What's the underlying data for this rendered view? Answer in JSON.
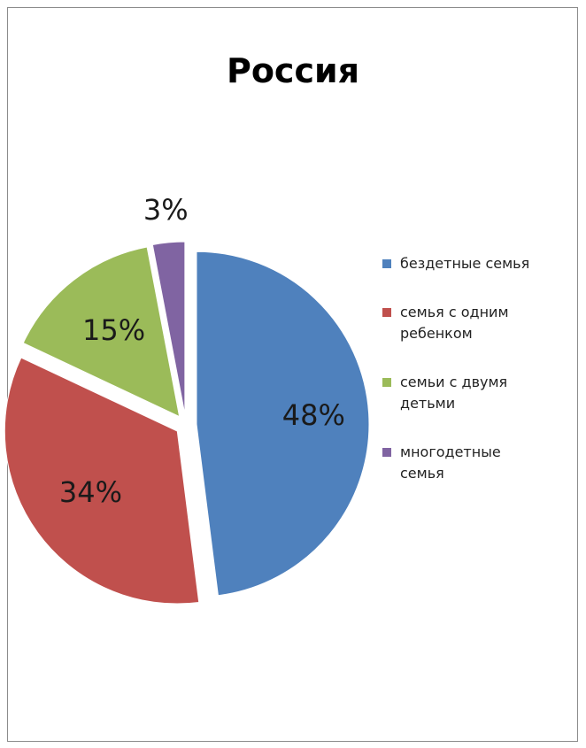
{
  "chart_data": {
    "type": "pie",
    "title": "Россия",
    "categories": [
      "бездетные семья",
      "семья с одним ребенком",
      "семьи с двумя детьми",
      "многодетные семья"
    ],
    "values": [
      48,
      34,
      15,
      3
    ],
    "data_labels": [
      "48%",
      "34%",
      "15%",
      "3%"
    ],
    "colors": [
      "#4f81bd",
      "#c0504d",
      "#9bbb59",
      "#8064a2"
    ],
    "exploded": true,
    "legend_position": "right"
  },
  "legend": {
    "items": [
      {
        "lines": [
          "бездетные семья"
        ]
      },
      {
        "lines": [
          "семья с одним",
          "ребенком"
        ]
      },
      {
        "lines": [
          "семьи с двумя",
          "детьми"
        ]
      },
      {
        "lines": [
          "многодетные",
          "семья"
        ]
      }
    ]
  }
}
